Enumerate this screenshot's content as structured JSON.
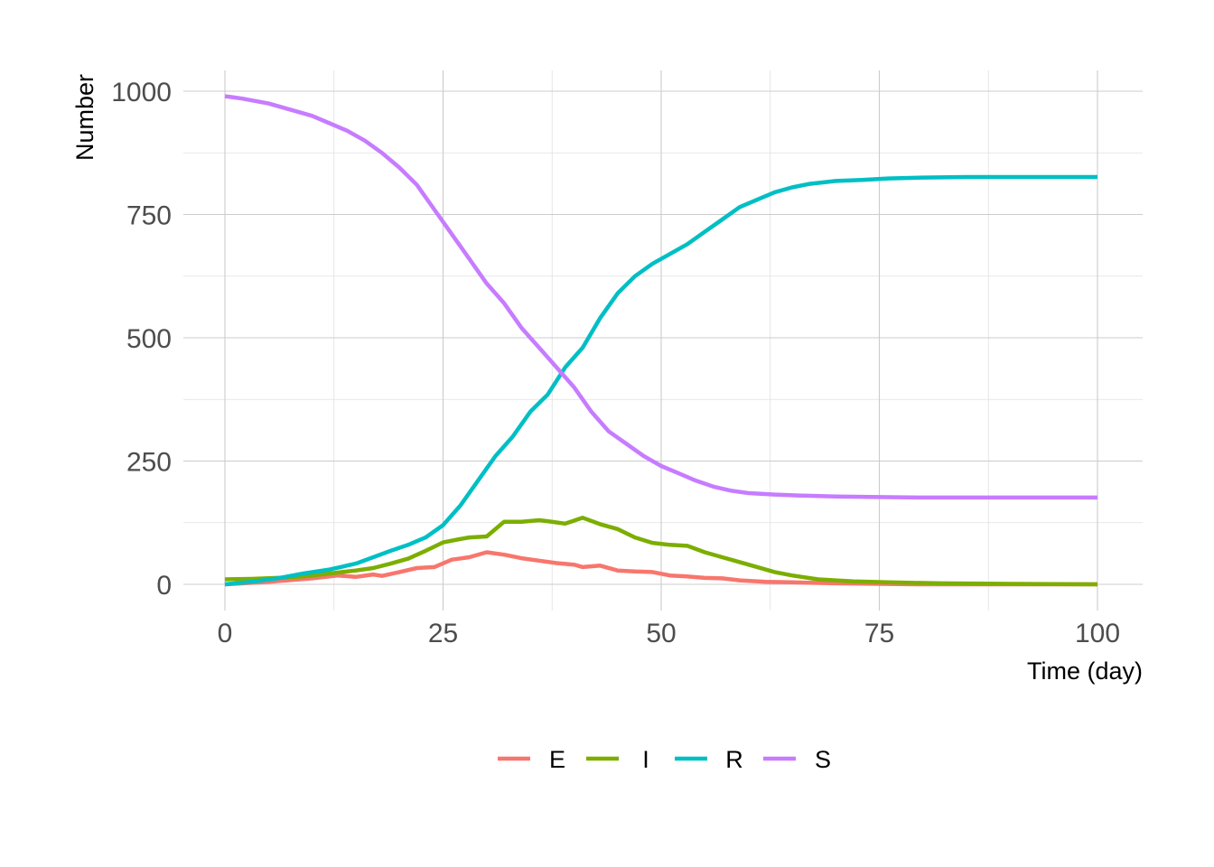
{
  "chart_data": {
    "type": "line",
    "xlabel": "Time (day)",
    "ylabel": "Number",
    "xlim": [
      0,
      100
    ],
    "ylim": [
      0,
      1000
    ],
    "x_ticks": [
      0,
      25,
      50,
      75,
      100
    ],
    "x_tick_labels": [
      "0",
      "25",
      "50",
      "75",
      "100"
    ],
    "y_ticks": [
      0,
      250,
      500,
      750,
      1000
    ],
    "y_tick_labels": [
      "0",
      "250",
      "500",
      "750",
      "1000"
    ],
    "grid": true,
    "legend_position": "bottom",
    "series": [
      {
        "name": "E",
        "color": "#F8766D",
        "points": [
          [
            0,
            0
          ],
          [
            5,
            5
          ],
          [
            10,
            12
          ],
          [
            13,
            18
          ],
          [
            15,
            15
          ],
          [
            17,
            20
          ],
          [
            18,
            17
          ],
          [
            20,
            25
          ],
          [
            22,
            33
          ],
          [
            24,
            35
          ],
          [
            26,
            50
          ],
          [
            28,
            55
          ],
          [
            30,
            65
          ],
          [
            32,
            60
          ],
          [
            34,
            53
          ],
          [
            36,
            48
          ],
          [
            38,
            43
          ],
          [
            40,
            40
          ],
          [
            41,
            35
          ],
          [
            43,
            38
          ],
          [
            45,
            28
          ],
          [
            47,
            26
          ],
          [
            49,
            25
          ],
          [
            51,
            18
          ],
          [
            53,
            16
          ],
          [
            55,
            13
          ],
          [
            57,
            12
          ],
          [
            59,
            8
          ],
          [
            62,
            5
          ],
          [
            65,
            4
          ],
          [
            70,
            2
          ],
          [
            75,
            1
          ],
          [
            80,
            0
          ],
          [
            100,
            0
          ]
        ]
      },
      {
        "name": "I",
        "color": "#7CAE00",
        "points": [
          [
            0,
            10
          ],
          [
            3,
            11
          ],
          [
            6,
            13
          ],
          [
            9,
            16
          ],
          [
            12,
            22
          ],
          [
            15,
            28
          ],
          [
            17,
            33
          ],
          [
            19,
            42
          ],
          [
            21,
            52
          ],
          [
            23,
            68
          ],
          [
            25,
            85
          ],
          [
            27,
            92
          ],
          [
            28,
            95
          ],
          [
            30,
            97
          ],
          [
            32,
            127
          ],
          [
            34,
            127
          ],
          [
            36,
            130
          ],
          [
            37,
            128
          ],
          [
            39,
            123
          ],
          [
            41,
            135
          ],
          [
            43,
            122
          ],
          [
            45,
            112
          ],
          [
            47,
            95
          ],
          [
            49,
            84
          ],
          [
            51,
            80
          ],
          [
            53,
            78
          ],
          [
            55,
            65
          ],
          [
            57,
            55
          ],
          [
            59,
            45
          ],
          [
            61,
            35
          ],
          [
            63,
            25
          ],
          [
            65,
            18
          ],
          [
            68,
            10
          ],
          [
            72,
            6
          ],
          [
            76,
            4
          ],
          [
            82,
            2
          ],
          [
            90,
            1
          ],
          [
            100,
            0
          ]
        ]
      },
      {
        "name": "R",
        "color": "#00BFC4",
        "points": [
          [
            0,
            0
          ],
          [
            3,
            5
          ],
          [
            6,
            12
          ],
          [
            9,
            22
          ],
          [
            12,
            30
          ],
          [
            15,
            42
          ],
          [
            17,
            55
          ],
          [
            19,
            68
          ],
          [
            21,
            80
          ],
          [
            23,
            95
          ],
          [
            25,
            120
          ],
          [
            27,
            160
          ],
          [
            29,
            210
          ],
          [
            31,
            260
          ],
          [
            33,
            300
          ],
          [
            35,
            350
          ],
          [
            37,
            385
          ],
          [
            39,
            440
          ],
          [
            41,
            480
          ],
          [
            43,
            540
          ],
          [
            45,
            590
          ],
          [
            47,
            625
          ],
          [
            49,
            650
          ],
          [
            51,
            670
          ],
          [
            53,
            690
          ],
          [
            55,
            715
          ],
          [
            57,
            740
          ],
          [
            59,
            765
          ],
          [
            61,
            780
          ],
          [
            63,
            795
          ],
          [
            65,
            805
          ],
          [
            67,
            812
          ],
          [
            70,
            818
          ],
          [
            73,
            820
          ],
          [
            76,
            823
          ],
          [
            80,
            825
          ],
          [
            85,
            826
          ],
          [
            100,
            826
          ]
        ]
      },
      {
        "name": "S",
        "color": "#C77CFF",
        "points": [
          [
            0,
            990
          ],
          [
            2,
            985
          ],
          [
            5,
            975
          ],
          [
            8,
            960
          ],
          [
            10,
            950
          ],
          [
            12,
            935
          ],
          [
            14,
            920
          ],
          [
            16,
            900
          ],
          [
            18,
            875
          ],
          [
            20,
            845
          ],
          [
            22,
            810
          ],
          [
            24,
            760
          ],
          [
            26,
            710
          ],
          [
            28,
            660
          ],
          [
            30,
            610
          ],
          [
            32,
            570
          ],
          [
            34,
            520
          ],
          [
            36,
            480
          ],
          [
            38,
            440
          ],
          [
            40,
            400
          ],
          [
            42,
            350
          ],
          [
            44,
            310
          ],
          [
            46,
            285
          ],
          [
            48,
            260
          ],
          [
            50,
            240
          ],
          [
            52,
            225
          ],
          [
            54,
            210
          ],
          [
            56,
            198
          ],
          [
            58,
            190
          ],
          [
            60,
            185
          ],
          [
            63,
            182
          ],
          [
            66,
            180
          ],
          [
            70,
            178
          ],
          [
            75,
            177
          ],
          [
            80,
            176
          ],
          [
            100,
            176
          ]
        ]
      }
    ]
  }
}
